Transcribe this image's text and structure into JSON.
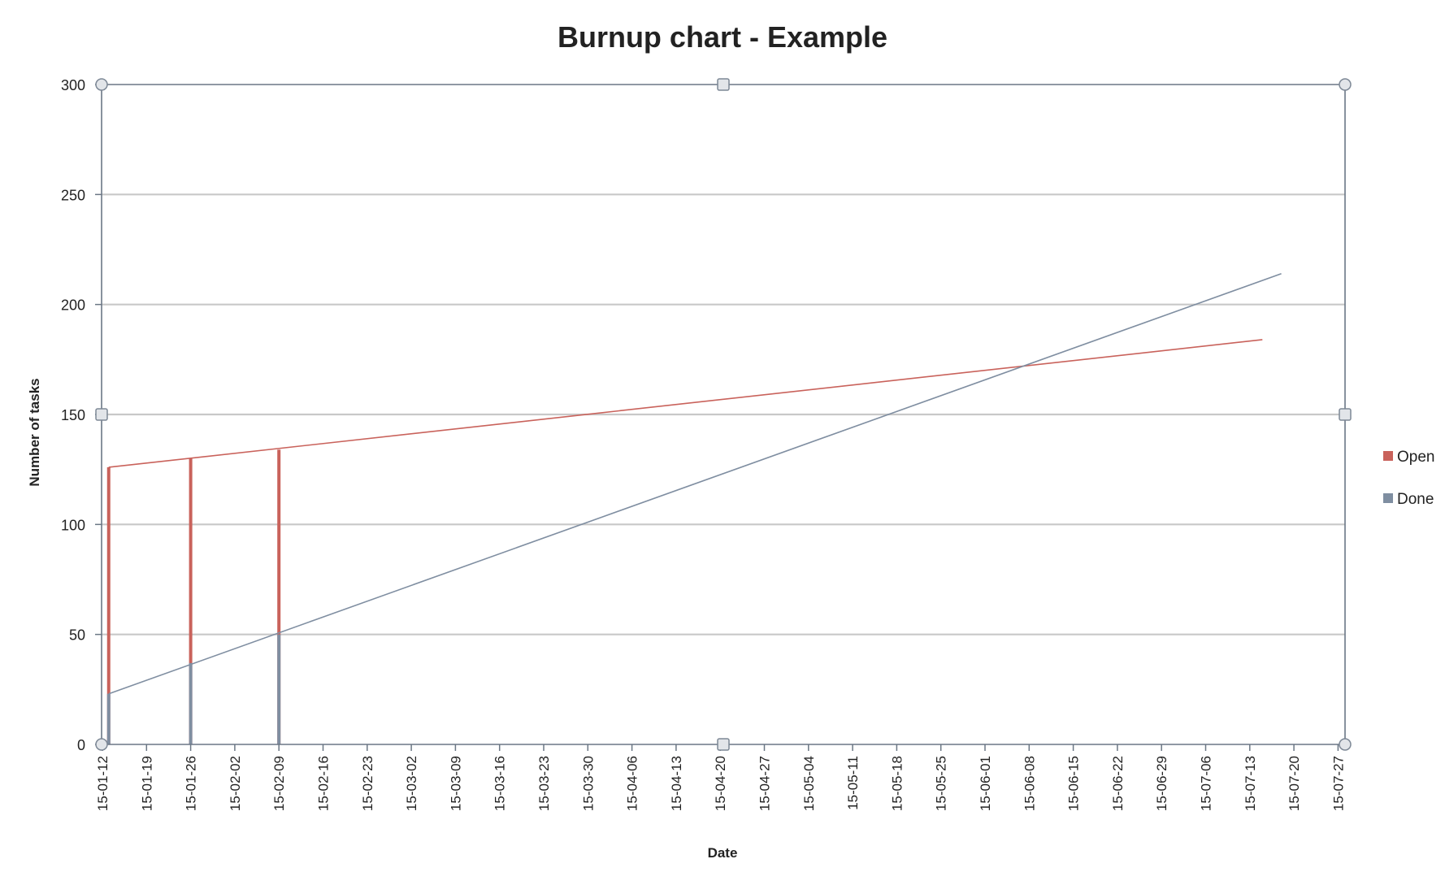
{
  "chart_data": {
    "type": "line",
    "title": "Burnup chart - Example",
    "xlabel": "Date",
    "ylabel": "Number of tasks",
    "ylim": [
      0,
      300
    ],
    "yticks": [
      0,
      50,
      100,
      150,
      200,
      250,
      300
    ],
    "x_tick_labels": [
      "15-01-12",
      "15-01-19",
      "15-01-26",
      "15-02-02",
      "15-02-09",
      "15-02-16",
      "15-02-23",
      "15-03-02",
      "15-03-09",
      "15-03-16",
      "15-03-23",
      "15-03-30",
      "15-04-06",
      "15-04-13",
      "15-04-20",
      "15-04-27",
      "15-05-04",
      "15-05-11",
      "15-05-18",
      "15-05-25",
      "15-06-01",
      "15-06-08",
      "15-06-15",
      "15-06-22",
      "15-06-29",
      "15-07-06",
      "15-07-13",
      "15-07-20",
      "15-07-27"
    ],
    "grid": true,
    "legend_position": "right",
    "series": [
      {
        "name": "Open",
        "color": "#c9625b",
        "bars": [
          {
            "x": "2015-01-13",
            "y": 126
          },
          {
            "x": "2015-01-26",
            "y": 130
          },
          {
            "x": "2015-02-09",
            "y": 134
          }
        ],
        "trend": [
          {
            "x": "2015-01-13",
            "y": 126
          },
          {
            "x": "2015-07-15",
            "y": 184
          }
        ]
      },
      {
        "name": "Done",
        "color": "#7f8ea1",
        "bars": [
          {
            "x": "2015-01-13",
            "y": 23
          },
          {
            "x": "2015-01-26",
            "y": 37
          },
          {
            "x": "2015-02-09",
            "y": 50
          }
        ],
        "trend": [
          {
            "x": "2015-01-13",
            "y": 23
          },
          {
            "x": "2015-07-18",
            "y": 214
          }
        ]
      }
    ]
  }
}
